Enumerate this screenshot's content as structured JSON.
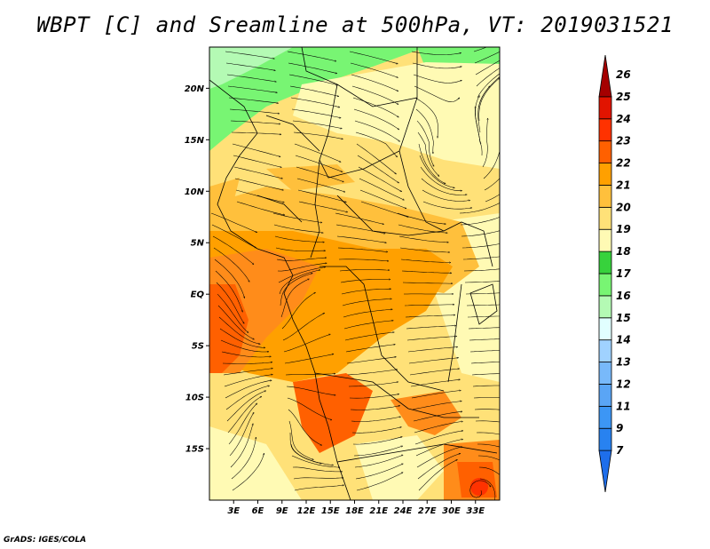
{
  "title": "WBPT [C] and Sreamline at 500hPa, VT: 2019031521",
  "credit": "GrADS: IGES/COLA",
  "map": {
    "lon_range": [
      0,
      36
    ],
    "lat_range": [
      -20,
      24
    ],
    "lat_ticks": [
      {
        "value": 20,
        "label": "20N"
      },
      {
        "value": 15,
        "label": "15N"
      },
      {
        "value": 10,
        "label": "10N"
      },
      {
        "value": 5,
        "label": "5N"
      },
      {
        "value": 0,
        "label": "EQ"
      },
      {
        "value": -5,
        "label": "5S"
      },
      {
        "value": -10,
        "label": "10S"
      },
      {
        "value": -15,
        "label": "15S"
      }
    ],
    "lon_ticks": [
      {
        "value": 3,
        "label": "3E"
      },
      {
        "value": 6,
        "label": "6E"
      },
      {
        "value": 9,
        "label": "9E"
      },
      {
        "value": 12,
        "label": "12E"
      },
      {
        "value": 15,
        "label": "15E"
      },
      {
        "value": 18,
        "label": "18E"
      },
      {
        "value": 21,
        "label": "21E"
      },
      {
        "value": 24,
        "label": "24E"
      },
      {
        "value": 27,
        "label": "27E"
      },
      {
        "value": 30,
        "label": "30E"
      },
      {
        "value": 33,
        "label": "33E"
      }
    ]
  },
  "colorbar": {
    "levels": [
      {
        "label": "7",
        "color": "#1e6eeb"
      },
      {
        "label": "9",
        "color": "#2882f0"
      },
      {
        "label": "11",
        "color": "#3c96f5"
      },
      {
        "label": "12",
        "color": "#5aa5f5"
      },
      {
        "label": "13",
        "color": "#78b9fa"
      },
      {
        "label": "14",
        "color": "#a0d2ff"
      },
      {
        "label": "15",
        "color": "#e1ffff"
      },
      {
        "label": "16",
        "color": "#b4fab4"
      },
      {
        "label": "17",
        "color": "#78f573"
      },
      {
        "label": "18",
        "color": "#37d23c"
      },
      {
        "label": "19",
        "color": "#fffab4"
      },
      {
        "label": "20",
        "color": "#ffe178"
      },
      {
        "label": "21",
        "color": "#ffc03c"
      },
      {
        "label": "22",
        "color": "#ffa000"
      },
      {
        "label": "23",
        "color": "#ff6000"
      },
      {
        "label": "24",
        "color": "#ff3200"
      },
      {
        "label": "25",
        "color": "#e11400"
      },
      {
        "label": "26",
        "color": "#a50000"
      }
    ]
  }
}
